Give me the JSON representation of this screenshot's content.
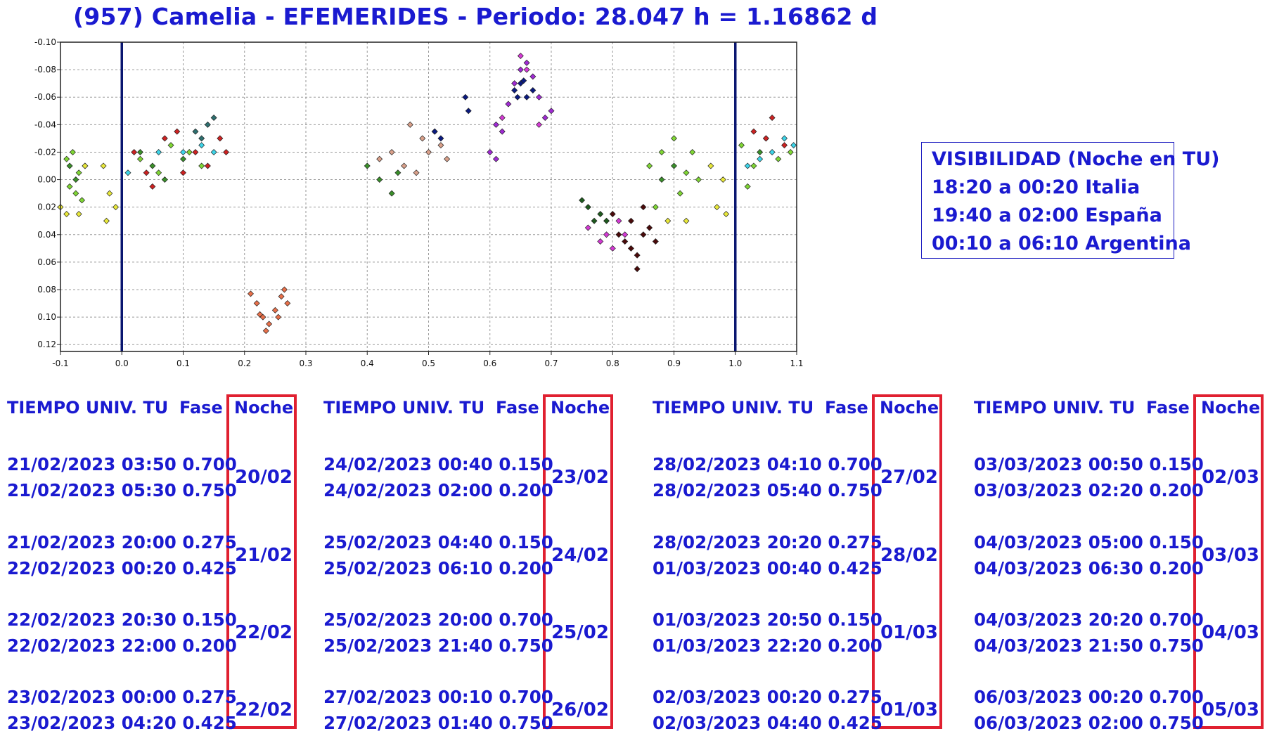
{
  "header": {
    "title": "(957) Camelia - EFEMERIDES - Periodo: 28.047 h = 1.16862 d"
  },
  "visibility": {
    "lines": [
      "VISIBILIDAD (Noche en TU)",
      "18:20 a 00:20 Italia",
      "19:40 a 02:00 España",
      "00:10 a 06:10 Argentina"
    ]
  },
  "chart_data": {
    "type": "scatter",
    "title": "",
    "xlabel": "",
    "ylabel": "",
    "xlim": [
      -0.1,
      1.1
    ],
    "ylim": [
      -0.1,
      0.125
    ],
    "y_inverted": true,
    "grid": true,
    "x_ticks": [
      "-0.1",
      "0.0",
      "0.1",
      "0.2",
      "0.3",
      "0.4",
      "0.5",
      "0.6",
      "0.7",
      "0.8",
      "0.9",
      "1.0",
      "1.1"
    ],
    "y_ticks": [
      "-0.10",
      "-0.08",
      "-0.06",
      "-0.04",
      "-0.02",
      "0.00",
      "0.02",
      "0.04",
      "0.06",
      "0.08",
      "0.10",
      "0.12"
    ],
    "vertical_lines": [
      0.0,
      1.0
    ],
    "series": [
      {
        "color": "#7fd634",
        "points": [
          [
            -0.09,
            -0.015
          ],
          [
            -0.085,
            0.005
          ],
          [
            -0.08,
            -0.02
          ],
          [
            -0.075,
            0.01
          ],
          [
            -0.07,
            -0.005
          ],
          [
            -0.065,
            0.015
          ],
          [
            -0.06,
            -0.01
          ],
          [
            0.88,
            -0.02
          ],
          [
            0.9,
            -0.03
          ],
          [
            0.92,
            -0.005
          ],
          [
            0.86,
            -0.01
          ],
          [
            0.91,
            0.01
          ],
          [
            0.87,
            0.02
          ],
          [
            0.93,
            -0.02
          ],
          [
            0.94,
            0.0
          ],
          [
            1.01,
            -0.025
          ],
          [
            1.03,
            -0.01
          ],
          [
            1.05,
            -0.03
          ],
          [
            1.07,
            -0.015
          ],
          [
            1.09,
            -0.02
          ],
          [
            1.02,
            0.005
          ],
          [
            0.03,
            -0.015
          ],
          [
            0.06,
            -0.005
          ],
          [
            0.08,
            -0.025
          ],
          [
            0.11,
            -0.02
          ],
          [
            0.13,
            -0.01
          ]
        ]
      },
      {
        "color": "#e8e83a",
        "points": [
          [
            -0.1,
            0.02
          ],
          [
            -0.09,
            0.025
          ],
          [
            -0.07,
            0.025
          ],
          [
            -0.06,
            -0.01
          ],
          [
            -0.03,
            -0.01
          ],
          [
            -0.02,
            0.01
          ],
          [
            -0.01,
            0.02
          ],
          [
            -0.025,
            0.03
          ],
          [
            0.98,
            0.0
          ],
          [
            0.97,
            0.02
          ],
          [
            0.96,
            -0.01
          ],
          [
            0.985,
            0.025
          ],
          [
            0.89,
            0.03
          ],
          [
            0.92,
            0.03
          ]
        ]
      },
      {
        "color": "#3a8f2a",
        "points": [
          [
            -0.085,
            -0.01
          ],
          [
            -0.075,
            0.0
          ],
          [
            0.03,
            -0.02
          ],
          [
            0.05,
            -0.01
          ],
          [
            0.07,
            0.0
          ],
          [
            0.1,
            -0.015
          ],
          [
            0.4,
            -0.01
          ],
          [
            0.42,
            0.0
          ],
          [
            0.45,
            -0.005
          ],
          [
            0.44,
            0.01
          ],
          [
            0.88,
            0.0
          ],
          [
            0.9,
            -0.01
          ],
          [
            1.04,
            -0.02
          ]
        ]
      },
      {
        "color": "#cc2222",
        "points": [
          [
            0.02,
            -0.02
          ],
          [
            0.04,
            -0.005
          ],
          [
            0.07,
            -0.03
          ],
          [
            0.09,
            -0.035
          ],
          [
            0.12,
            -0.02
          ],
          [
            0.14,
            -0.01
          ],
          [
            0.16,
            -0.03
          ],
          [
            0.17,
            -0.02
          ],
          [
            1.03,
            -0.035
          ],
          [
            1.05,
            -0.03
          ],
          [
            1.06,
            -0.045
          ],
          [
            1.08,
            -0.025
          ],
          [
            0.05,
            0.005
          ],
          [
            0.1,
            -0.005
          ]
        ]
      },
      {
        "color": "#3dd4e8",
        "points": [
          [
            0.01,
            -0.005
          ],
          [
            0.06,
            -0.02
          ],
          [
            0.1,
            -0.02
          ],
          [
            0.13,
            -0.025
          ],
          [
            0.15,
            -0.02
          ],
          [
            1.02,
            -0.01
          ],
          [
            1.04,
            -0.015
          ],
          [
            1.06,
            -0.02
          ],
          [
            1.08,
            -0.03
          ],
          [
            1.095,
            -0.025
          ]
        ]
      },
      {
        "color": "#2e6f6f",
        "points": [
          [
            0.12,
            -0.035
          ],
          [
            0.14,
            -0.04
          ],
          [
            0.15,
            -0.045
          ],
          [
            0.13,
            -0.03
          ]
        ]
      },
      {
        "color": "#e8704a",
        "points": [
          [
            0.21,
            0.083
          ],
          [
            0.22,
            0.09
          ],
          [
            0.23,
            0.1
          ],
          [
            0.24,
            0.105
          ],
          [
            0.25,
            0.095
          ],
          [
            0.26,
            0.085
          ],
          [
            0.27,
            0.09
          ],
          [
            0.235,
            0.11
          ],
          [
            0.225,
            0.098
          ],
          [
            0.255,
            0.1
          ],
          [
            0.265,
            0.08
          ]
        ]
      },
      {
        "color": "#d9a08a",
        "points": [
          [
            0.42,
            -0.015
          ],
          [
            0.44,
            -0.02
          ],
          [
            0.46,
            -0.01
          ],
          [
            0.48,
            -0.005
          ],
          [
            0.5,
            -0.02
          ],
          [
            0.52,
            -0.025
          ],
          [
            0.49,
            -0.03
          ],
          [
            0.51,
            -0.035
          ],
          [
            0.53,
            -0.015
          ],
          [
            0.47,
            -0.04
          ]
        ]
      },
      {
        "color": "#0a1a80",
        "points": [
          [
            0.51,
            -0.035
          ],
          [
            0.52,
            -0.03
          ],
          [
            0.56,
            -0.06
          ],
          [
            0.565,
            -0.05
          ],
          [
            0.64,
            -0.065
          ],
          [
            0.65,
            -0.07
          ],
          [
            0.66,
            -0.06
          ],
          [
            0.67,
            -0.065
          ],
          [
            0.645,
            -0.06
          ],
          [
            0.655,
            -0.072
          ]
        ]
      },
      {
        "color": "#a02ad4",
        "points": [
          [
            0.61,
            -0.04
          ],
          [
            0.62,
            -0.035
          ],
          [
            0.63,
            -0.055
          ],
          [
            0.64,
            -0.07
          ],
          [
            0.65,
            -0.08
          ],
          [
            0.66,
            -0.085
          ],
          [
            0.67,
            -0.075
          ],
          [
            0.68,
            -0.06
          ],
          [
            0.69,
            -0.045
          ],
          [
            0.7,
            -0.05
          ],
          [
            0.6,
            -0.02
          ],
          [
            0.61,
            -0.015
          ]
        ]
      },
      {
        "color": "#d43ad4",
        "points": [
          [
            0.62,
            -0.045
          ],
          [
            0.65,
            -0.09
          ],
          [
            0.66,
            -0.08
          ],
          [
            0.68,
            -0.04
          ],
          [
            0.76,
            0.035
          ],
          [
            0.78,
            0.045
          ],
          [
            0.8,
            0.05
          ],
          [
            0.82,
            0.04
          ],
          [
            0.79,
            0.04
          ],
          [
            0.81,
            0.03
          ]
        ]
      },
      {
        "color": "#1e5a1e",
        "points": [
          [
            0.75,
            0.015
          ],
          [
            0.76,
            0.02
          ],
          [
            0.78,
            0.025
          ],
          [
            0.79,
            0.03
          ],
          [
            0.77,
            0.03
          ]
        ]
      },
      {
        "color": "#4a0a0a",
        "points": [
          [
            0.8,
            0.025
          ],
          [
            0.81,
            0.04
          ],
          [
            0.82,
            0.045
          ],
          [
            0.83,
            0.05
          ],
          [
            0.84,
            0.055
          ],
          [
            0.85,
            0.04
          ],
          [
            0.86,
            0.035
          ],
          [
            0.87,
            0.045
          ],
          [
            0.84,
            0.065
          ],
          [
            0.83,
            0.03
          ],
          [
            0.85,
            0.02
          ]
        ]
      }
    ]
  },
  "tables": [
    {
      "header_time": "TIEMPO UNIV. TU",
      "header_fase": "Fase",
      "header_noche": "Noche",
      "groups": [
        {
          "row1": "21/02/2023  03:50 0.700",
          "row2": "21/02/2023  05:30 0.750",
          "noche": "20/02"
        },
        {
          "row1": "21/02/2023  20:00 0.275",
          "row2": "22/02/2023  00:20 0.425",
          "noche": "21/02"
        },
        {
          "row1": "22/02/2023  20:30 0.150",
          "row2": "22/02/2023  22:00 0.200",
          "noche": "22/02"
        },
        {
          "row1": "23/02/2023  00:00 0.275",
          "row2": "23/02/2023  04:20 0.425",
          "noche": "22/02"
        }
      ]
    },
    {
      "header_time": "TIEMPO UNIV. TU",
      "header_fase": "Fase",
      "header_noche": "Noche",
      "groups": [
        {
          "row1": "24/02/2023  00:40 0.150",
          "row2": "24/02/2023  02:00 0.200",
          "noche": "23/02"
        },
        {
          "row1": "25/02/2023  04:40 0.150",
          "row2": "25/02/2023  06:10 0.200",
          "noche": "24/02"
        },
        {
          "row1": "25/02/2023  20:00 0.700",
          "row2": "25/02/2023  21:40 0.750",
          "noche": "25/02"
        },
        {
          "row1": "27/02/2023  00:10 0.700",
          "row2": "27/02/2023  01:40 0.750",
          "noche": "26/02"
        }
      ]
    },
    {
      "header_time": "TIEMPO UNIV. TU",
      "header_fase": "Fase",
      "header_noche": "Noche",
      "groups": [
        {
          "row1": "28/02/2023  04:10 0.700",
          "row2": "28/02/2023  05:40 0.750",
          "noche": "27/02"
        },
        {
          "row1": "28/02/2023  20:20 0.275",
          "row2": "01/03/2023  00:40 0.425",
          "noche": "28/02"
        },
        {
          "row1": "01/03/2023  20:50 0.150",
          "row2": "01/03/2023  22:20 0.200",
          "noche": "01/03"
        },
        {
          "row1": "02/03/2023  00:20 0.275",
          "row2": "02/03/2023  04:40 0.425",
          "noche": "01/03"
        }
      ]
    },
    {
      "header_time": "TIEMPO UNIV. TU",
      "header_fase": "Fase",
      "header_noche": "Noche",
      "groups": [
        {
          "row1": "03/03/2023  00:50 0.150",
          "row2": "03/03/2023  02:20 0.200",
          "noche": "02/03"
        },
        {
          "row1": "04/03/2023  05:00 0.150",
          "row2": "04/03/2023  06:30 0.200",
          "noche": "03/03"
        },
        {
          "row1": "04/03/2023  20:20 0.700",
          "row2": "04/03/2023  21:50 0.750",
          "noche": "04/03"
        },
        {
          "row1": "06/03/2023  00:20 0.700",
          "row2": "06/03/2023  02:00 0.750",
          "noche": "05/03"
        }
      ]
    }
  ]
}
